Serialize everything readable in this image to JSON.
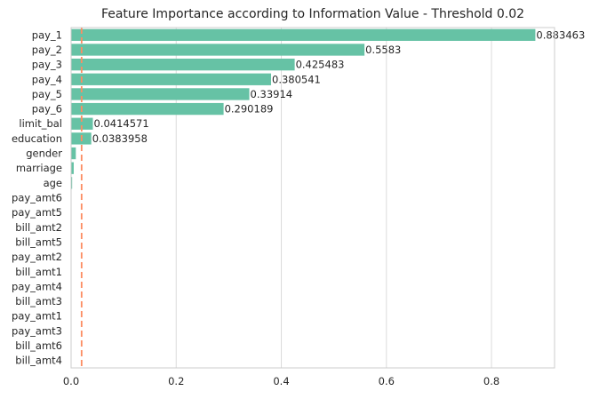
{
  "chart_data": {
    "type": "bar",
    "orientation": "horizontal",
    "title": "Feature Importance according to Information Value - Threshold 0.02",
    "xlabel": "",
    "ylabel": "",
    "categories": [
      "pay_1",
      "pay_2",
      "pay_3",
      "pay_4",
      "pay_5",
      "pay_6",
      "limit_bal",
      "education",
      "gender",
      "marriage",
      "age",
      "pay_amt6",
      "pay_amt5",
      "bill_amt2",
      "bill_amt5",
      "pay_amt2",
      "bill_amt1",
      "pay_amt4",
      "bill_amt3",
      "pay_amt1",
      "pay_amt3",
      "bill_amt6",
      "bill_amt4"
    ],
    "values": [
      0.883463,
      0.5583,
      0.425483,
      0.380541,
      0.33914,
      0.290189,
      0.0414571,
      0.0383958,
      0.009,
      0.005,
      0.002,
      0.0005,
      0.0004,
      0.0003,
      0.0003,
      0.0002,
      0.0002,
      0.0002,
      0.0001,
      0.0001,
      0.0001,
      0.0001,
      0.0001
    ],
    "data_labels": [
      "0.883463",
      "0.5583",
      "0.425483",
      "0.380541",
      "0.33914",
      "0.290189",
      "0.0414571",
      "0.0383958",
      "",
      "",
      "",
      "",
      "",
      "",
      "",
      "",
      "",
      "",
      "",
      "",
      "",
      "",
      ""
    ],
    "xlim": [
      0,
      0.92
    ],
    "xticks": [
      0.0,
      0.2,
      0.4,
      0.6,
      0.8
    ],
    "xtick_labels": [
      "0.0",
      "0.2",
      "0.4",
      "0.6",
      "0.8"
    ],
    "threshold": 0.02,
    "grid": "vertical",
    "colors": {
      "bar": "#66c2a5",
      "threshold": "#fc8d62",
      "grid": "#dcdcdc",
      "axes": "#cccccc",
      "text": "#262626"
    }
  }
}
